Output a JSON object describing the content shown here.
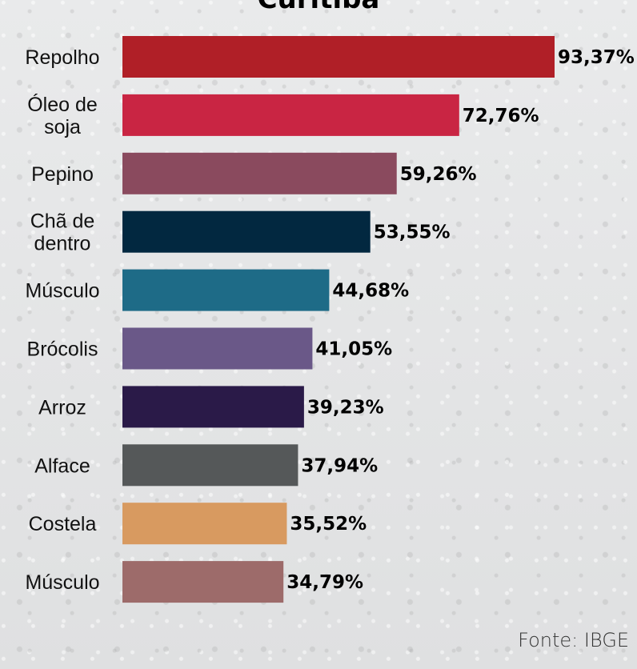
{
  "chart_data": {
    "type": "bar",
    "orientation": "horizontal",
    "title": "Curitiba",
    "categories": [
      "Repolho",
      "Óleo de\nsoja",
      "Pepino",
      "Chã de\ndentro",
      "Músculo",
      "Brócolis",
      "Arroz",
      "Alface",
      "Costela",
      "Músculo"
    ],
    "values": [
      93.37,
      72.76,
      59.26,
      53.55,
      44.68,
      41.05,
      39.23,
      37.94,
      35.52,
      34.79
    ],
    "value_labels": [
      "93,37%",
      "72,76%",
      "59,26%",
      "53,55%",
      "44,68%",
      "41,05%",
      "39,23%",
      "37,94%",
      "35,52%",
      "34,79%"
    ],
    "colors": [
      "#b01f27",
      "#c92543",
      "#8a4a5e",
      "#022840",
      "#1e6b87",
      "#6a5888",
      "#2a1a48",
      "#555859",
      "#d89a60",
      "#9d6b6a"
    ],
    "xlim": [
      0,
      93.37
    ],
    "grid": false,
    "legend": "none"
  },
  "source": "Fonte: IBGE"
}
